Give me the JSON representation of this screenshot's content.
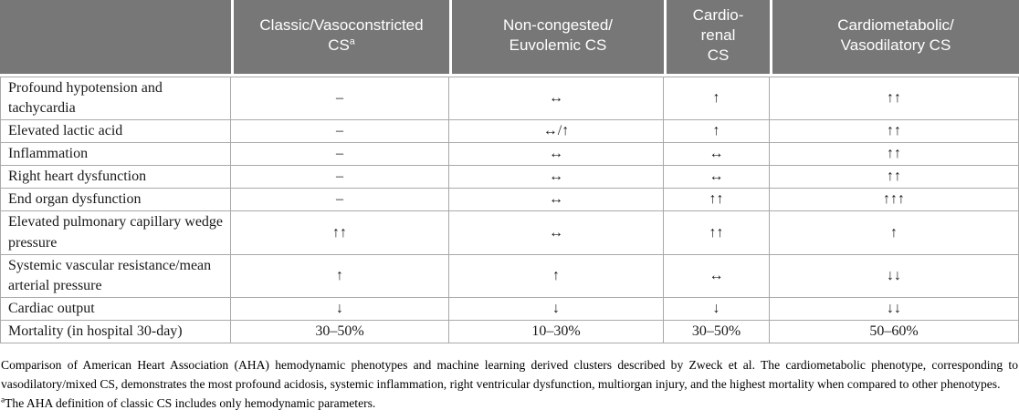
{
  "colors": {
    "header_bg": "#777777",
    "header_text": "#ffffff",
    "border": "#a9a9a9",
    "body_text": "#1a1a1a"
  },
  "table": {
    "header": [
      {
        "id": "feature",
        "lines": [
          ""
        ]
      },
      {
        "id": "classic-vasoconstricted",
        "lines": [
          "Classic/Vasoconstricted",
          "CS"
        ],
        "sup": "a"
      },
      {
        "id": "non-congested-euvolemic",
        "lines": [
          "Non-congested/",
          "Euvolemic CS"
        ]
      },
      {
        "id": "cardio-renal",
        "lines": [
          "Cardio-",
          "renal",
          "CS"
        ]
      },
      {
        "id": "cardiometabolic-vasodilatory",
        "lines": [
          "Cardiometabolic/",
          "Vasodilatory CS"
        ]
      }
    ],
    "rows": [
      {
        "label": "Profound hypotension and tachycardia",
        "values": [
          "–",
          "↔",
          "↑",
          "↑↑"
        ]
      },
      {
        "label": "Elevated lactic acid",
        "values": [
          "–",
          "↔/↑",
          "↑",
          "↑↑"
        ]
      },
      {
        "label": "Inflammation",
        "values": [
          "–",
          "↔",
          "↔",
          "↑↑"
        ]
      },
      {
        "label": "Right heart dysfunction",
        "values": [
          "–",
          "↔",
          "↔",
          "↑↑"
        ]
      },
      {
        "label": "End organ dysfunction",
        "values": [
          "–",
          "↔",
          "↑↑",
          "↑↑↑"
        ]
      },
      {
        "label": "Elevated pulmonary capillary wedge pressure",
        "values": [
          "↑↑",
          "↔",
          "↑↑",
          "↑"
        ]
      },
      {
        "label": "Systemic vascular resistance/mean arterial pressure",
        "values": [
          "↑",
          "↑",
          "↔",
          "↓↓"
        ]
      },
      {
        "label": "Cardiac output",
        "values": [
          "↓",
          "↓",
          "↓",
          "↓↓"
        ]
      },
      {
        "label": "Mortality (in hospital 30-day)",
        "values": [
          "30–50%",
          "10–30%",
          "30–50%",
          "50–60%"
        ]
      }
    ]
  },
  "caption": {
    "text": "Comparison of American Heart Association (AHA) hemodynamic phenotypes and machine learning derived clusters described by Zweck et al. The cardiometabolic phenotype, corresponding to vasodilatory/mixed CS, demonstrates the most profound acidosis, systemic inflammation, right ventricular dysfunction, multiorgan injury, and the highest mortality when compared to other phenotypes.",
    "footnote_sup": "a",
    "footnote_text": "The AHA definition of classic CS includes only hemodynamic parameters."
  }
}
